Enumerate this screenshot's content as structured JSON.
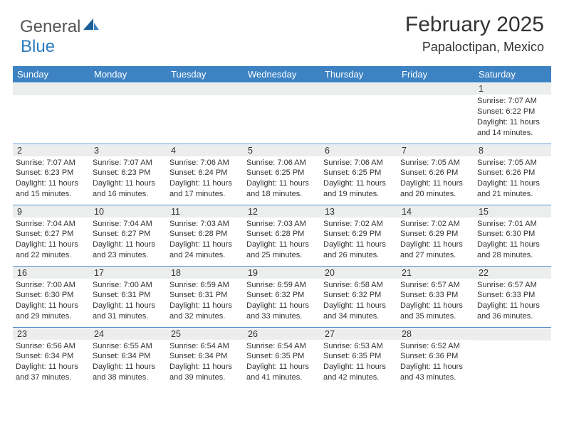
{
  "logo": {
    "general": "General",
    "blue": "Blue"
  },
  "title": {
    "month_year": "February 2025",
    "location": "Papaloctipan, Mexico"
  },
  "colors": {
    "header_bg": "#3d83c3",
    "header_text": "#ffffff",
    "row_alt_bg": "#eceded",
    "cell_border": "#3d83c3",
    "text": "#333333",
    "logo_blue": "#2c7bbf",
    "logo_gray": "#555555"
  },
  "day_headers": [
    "Sunday",
    "Monday",
    "Tuesday",
    "Wednesday",
    "Thursday",
    "Friday",
    "Saturday"
  ],
  "weeks": [
    [
      {
        "n": "",
        "sunrise": "",
        "sunset": "",
        "daylight": ""
      },
      {
        "n": "",
        "sunrise": "",
        "sunset": "",
        "daylight": ""
      },
      {
        "n": "",
        "sunrise": "",
        "sunset": "",
        "daylight": ""
      },
      {
        "n": "",
        "sunrise": "",
        "sunset": "",
        "daylight": ""
      },
      {
        "n": "",
        "sunrise": "",
        "sunset": "",
        "daylight": ""
      },
      {
        "n": "",
        "sunrise": "",
        "sunset": "",
        "daylight": ""
      },
      {
        "n": "1",
        "sunrise": "Sunrise: 7:07 AM",
        "sunset": "Sunset: 6:22 PM",
        "daylight": "Daylight: 11 hours and 14 minutes."
      }
    ],
    [
      {
        "n": "2",
        "sunrise": "Sunrise: 7:07 AM",
        "sunset": "Sunset: 6:23 PM",
        "daylight": "Daylight: 11 hours and 15 minutes."
      },
      {
        "n": "3",
        "sunrise": "Sunrise: 7:07 AM",
        "sunset": "Sunset: 6:23 PM",
        "daylight": "Daylight: 11 hours and 16 minutes."
      },
      {
        "n": "4",
        "sunrise": "Sunrise: 7:06 AM",
        "sunset": "Sunset: 6:24 PM",
        "daylight": "Daylight: 11 hours and 17 minutes."
      },
      {
        "n": "5",
        "sunrise": "Sunrise: 7:06 AM",
        "sunset": "Sunset: 6:25 PM",
        "daylight": "Daylight: 11 hours and 18 minutes."
      },
      {
        "n": "6",
        "sunrise": "Sunrise: 7:06 AM",
        "sunset": "Sunset: 6:25 PM",
        "daylight": "Daylight: 11 hours and 19 minutes."
      },
      {
        "n": "7",
        "sunrise": "Sunrise: 7:05 AM",
        "sunset": "Sunset: 6:26 PM",
        "daylight": "Daylight: 11 hours and 20 minutes."
      },
      {
        "n": "8",
        "sunrise": "Sunrise: 7:05 AM",
        "sunset": "Sunset: 6:26 PM",
        "daylight": "Daylight: 11 hours and 21 minutes."
      }
    ],
    [
      {
        "n": "9",
        "sunrise": "Sunrise: 7:04 AM",
        "sunset": "Sunset: 6:27 PM",
        "daylight": "Daylight: 11 hours and 22 minutes."
      },
      {
        "n": "10",
        "sunrise": "Sunrise: 7:04 AM",
        "sunset": "Sunset: 6:27 PM",
        "daylight": "Daylight: 11 hours and 23 minutes."
      },
      {
        "n": "11",
        "sunrise": "Sunrise: 7:03 AM",
        "sunset": "Sunset: 6:28 PM",
        "daylight": "Daylight: 11 hours and 24 minutes."
      },
      {
        "n": "12",
        "sunrise": "Sunrise: 7:03 AM",
        "sunset": "Sunset: 6:28 PM",
        "daylight": "Daylight: 11 hours and 25 minutes."
      },
      {
        "n": "13",
        "sunrise": "Sunrise: 7:02 AM",
        "sunset": "Sunset: 6:29 PM",
        "daylight": "Daylight: 11 hours and 26 minutes."
      },
      {
        "n": "14",
        "sunrise": "Sunrise: 7:02 AM",
        "sunset": "Sunset: 6:29 PM",
        "daylight": "Daylight: 11 hours and 27 minutes."
      },
      {
        "n": "15",
        "sunrise": "Sunrise: 7:01 AM",
        "sunset": "Sunset: 6:30 PM",
        "daylight": "Daylight: 11 hours and 28 minutes."
      }
    ],
    [
      {
        "n": "16",
        "sunrise": "Sunrise: 7:00 AM",
        "sunset": "Sunset: 6:30 PM",
        "daylight": "Daylight: 11 hours and 29 minutes."
      },
      {
        "n": "17",
        "sunrise": "Sunrise: 7:00 AM",
        "sunset": "Sunset: 6:31 PM",
        "daylight": "Daylight: 11 hours and 31 minutes."
      },
      {
        "n": "18",
        "sunrise": "Sunrise: 6:59 AM",
        "sunset": "Sunset: 6:31 PM",
        "daylight": "Daylight: 11 hours and 32 minutes."
      },
      {
        "n": "19",
        "sunrise": "Sunrise: 6:59 AM",
        "sunset": "Sunset: 6:32 PM",
        "daylight": "Daylight: 11 hours and 33 minutes."
      },
      {
        "n": "20",
        "sunrise": "Sunrise: 6:58 AM",
        "sunset": "Sunset: 6:32 PM",
        "daylight": "Daylight: 11 hours and 34 minutes."
      },
      {
        "n": "21",
        "sunrise": "Sunrise: 6:57 AM",
        "sunset": "Sunset: 6:33 PM",
        "daylight": "Daylight: 11 hours and 35 minutes."
      },
      {
        "n": "22",
        "sunrise": "Sunrise: 6:57 AM",
        "sunset": "Sunset: 6:33 PM",
        "daylight": "Daylight: 11 hours and 36 minutes."
      }
    ],
    [
      {
        "n": "23",
        "sunrise": "Sunrise: 6:56 AM",
        "sunset": "Sunset: 6:34 PM",
        "daylight": "Daylight: 11 hours and 37 minutes."
      },
      {
        "n": "24",
        "sunrise": "Sunrise: 6:55 AM",
        "sunset": "Sunset: 6:34 PM",
        "daylight": "Daylight: 11 hours and 38 minutes."
      },
      {
        "n": "25",
        "sunrise": "Sunrise: 6:54 AM",
        "sunset": "Sunset: 6:34 PM",
        "daylight": "Daylight: 11 hours and 39 minutes."
      },
      {
        "n": "26",
        "sunrise": "Sunrise: 6:54 AM",
        "sunset": "Sunset: 6:35 PM",
        "daylight": "Daylight: 11 hours and 41 minutes."
      },
      {
        "n": "27",
        "sunrise": "Sunrise: 6:53 AM",
        "sunset": "Sunset: 6:35 PM",
        "daylight": "Daylight: 11 hours and 42 minutes."
      },
      {
        "n": "28",
        "sunrise": "Sunrise: 6:52 AM",
        "sunset": "Sunset: 6:36 PM",
        "daylight": "Daylight: 11 hours and 43 minutes."
      },
      {
        "n": "",
        "sunrise": "",
        "sunset": "",
        "daylight": ""
      }
    ]
  ]
}
